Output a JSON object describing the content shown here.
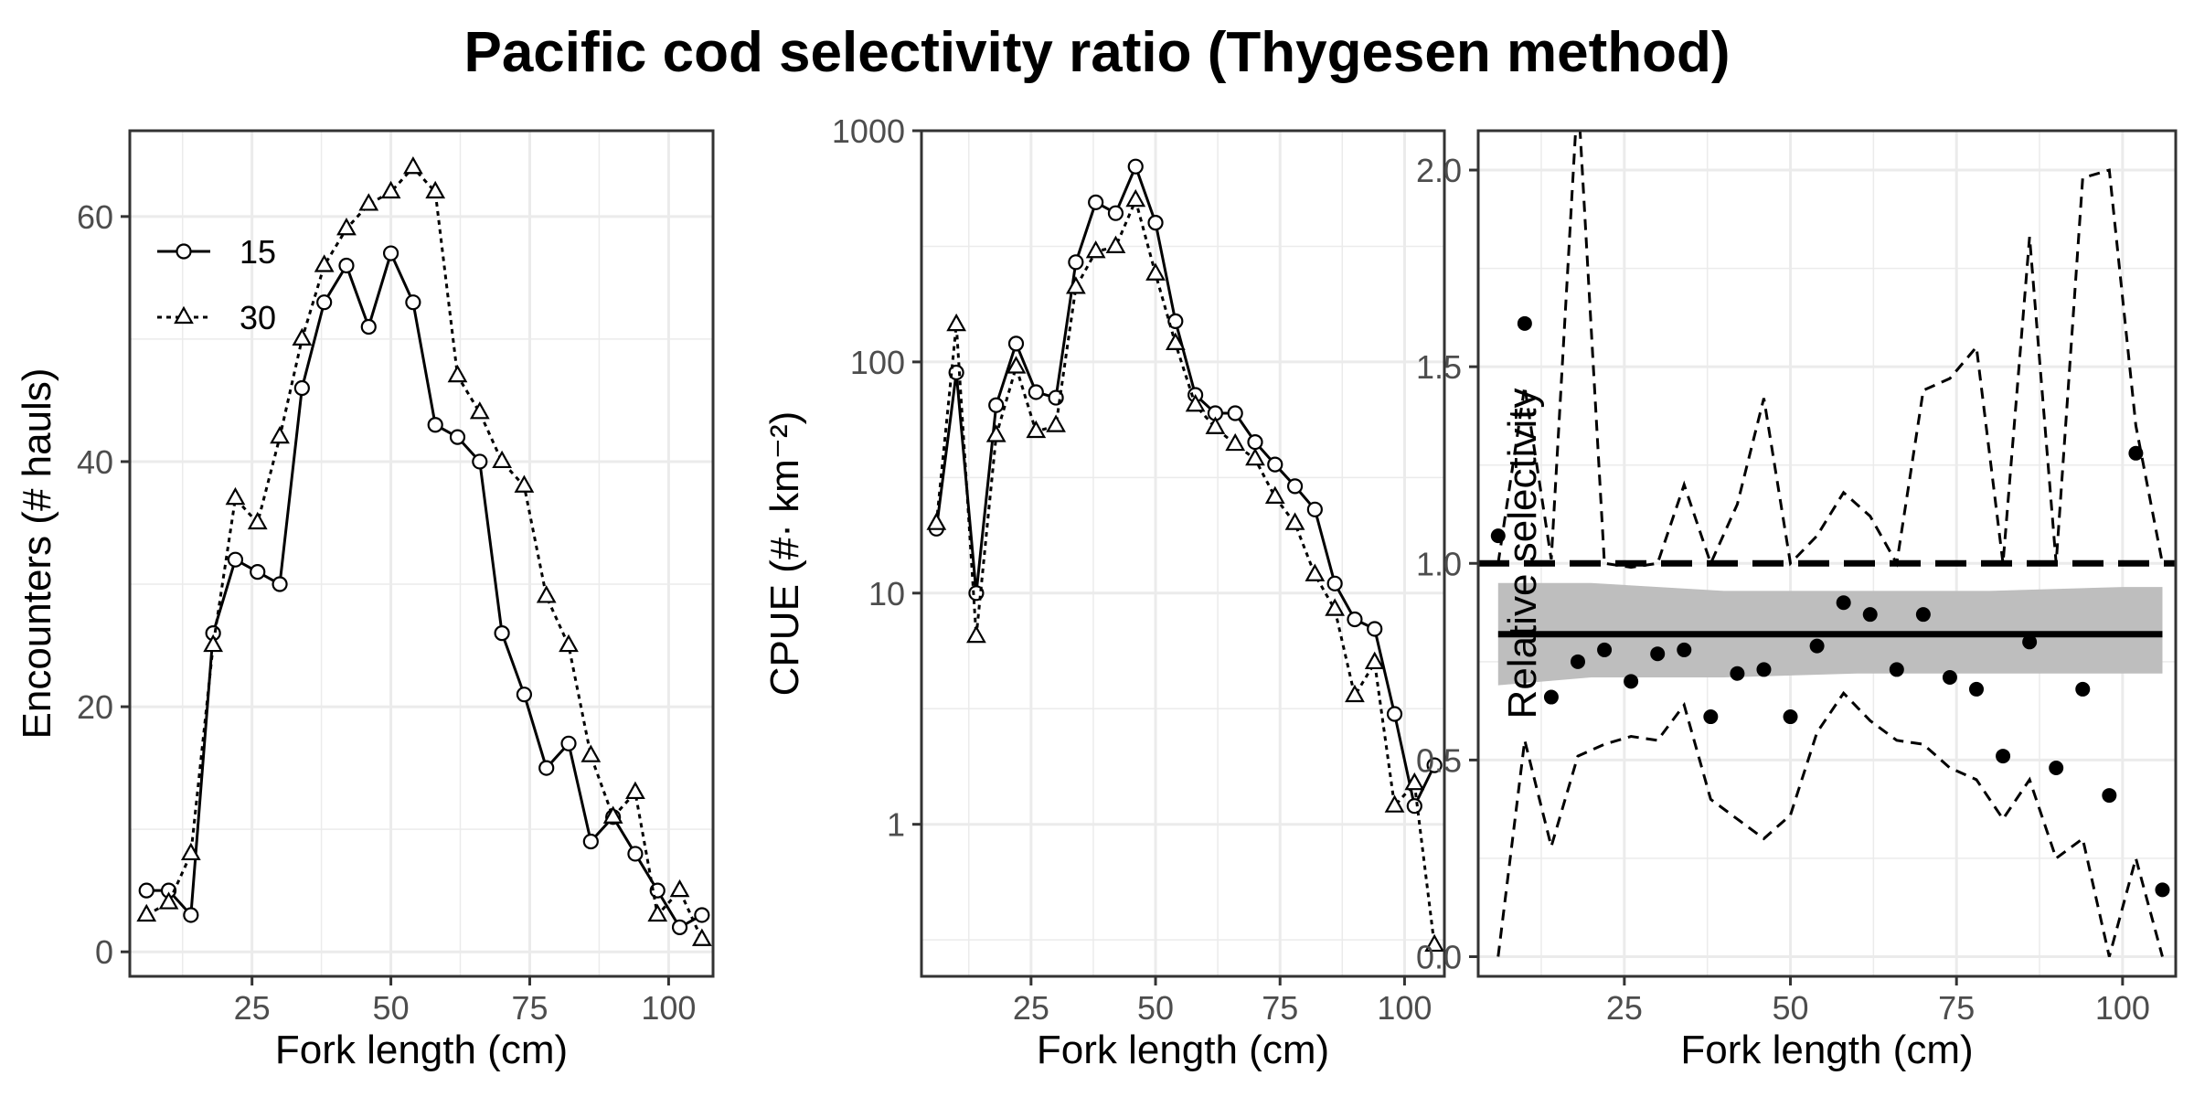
{
  "title": "Pacific cod selectivity ratio (Thygesen method)",
  "colors": {
    "line": "#000000",
    "grid": "#ebebeb",
    "band": "#bebebe",
    "panel_border": "#333333"
  },
  "chart_data": [
    {
      "type": "line",
      "xlabel": "Fork length (cm)",
      "ylabel": "Encounters (# hauls)",
      "xlim": [
        3,
        108
      ],
      "ylim": [
        -2,
        67
      ],
      "xticks": [
        25,
        50,
        75,
        100
      ],
      "yticks": [
        0,
        20,
        40,
        60
      ],
      "legend_position": "top-left",
      "grid": true,
      "x": [
        6,
        10,
        14,
        18,
        22,
        26,
        30,
        34,
        38,
        42,
        46,
        50,
        54,
        58,
        62,
        66,
        70,
        74,
        78,
        82,
        86,
        90,
        94,
        98,
        102,
        106
      ],
      "series": [
        {
          "name": "15",
          "marker": "circle",
          "line": "solid",
          "values": [
            5,
            5,
            3,
            26,
            32,
            31,
            30,
            46,
            53,
            56,
            51,
            57,
            53,
            43,
            42,
            40,
            26,
            21,
            15,
            17,
            9,
            11,
            8,
            5,
            2,
            3
          ]
        },
        {
          "name": "30",
          "marker": "triangle",
          "line": "dotted",
          "values": [
            3,
            4,
            8,
            25,
            37,
            35,
            42,
            50,
            56,
            59,
            61,
            62,
            64,
            62,
            47,
            44,
            40,
            38,
            29,
            25,
            16,
            11,
            13,
            3,
            5,
            1
          ]
        }
      ]
    },
    {
      "type": "line",
      "xlabel": "Fork length (cm)",
      "ylabel": "CPUE (#· km⁻²)",
      "yscale": "log",
      "xlim": [
        3,
        108
      ],
      "ylim": [
        0.22,
        1000
      ],
      "xticks": [
        25,
        50,
        75,
        100
      ],
      "yticks": [
        1,
        10,
        100,
        1000
      ],
      "grid": true,
      "x": [
        6,
        10,
        14,
        18,
        22,
        26,
        30,
        34,
        38,
        42,
        46,
        50,
        54,
        58,
        62,
        66,
        70,
        74,
        78,
        82,
        86,
        90,
        94,
        98,
        102,
        106
      ],
      "series": [
        {
          "name": "15",
          "marker": "circle",
          "line": "solid",
          "values": [
            19,
            90,
            10,
            65,
            120,
            74,
            70,
            270,
            490,
            440,
            700,
            400,
            150,
            72,
            60,
            60,
            45,
            36,
            29,
            23,
            11,
            7.7,
            7,
            3,
            1.2,
            1.8
          ]
        },
        {
          "name": "30",
          "marker": "triangle",
          "line": "dotted",
          "values": [
            20,
            145,
            6.5,
            48,
            95,
            50,
            53,
            210,
            300,
            315,
            500,
            240,
            120,
            65,
            52,
            44,
            38,
            26,
            20,
            12,
            8.5,
            3.6,
            5,
            1.2,
            1.5,
            0.3
          ]
        }
      ]
    },
    {
      "type": "scatter",
      "xlabel": "Fork length (cm)",
      "ylabel": "Relative selectivity",
      "xlim": [
        3,
        108
      ],
      "ylim": [
        -0.05,
        2.1
      ],
      "xticks": [
        25,
        50,
        75,
        100
      ],
      "yticks": [
        0.0,
        0.5,
        1.0,
        1.5,
        2.0
      ],
      "ytick_labels": [
        "0.0",
        "0.5",
        "1.0",
        "1.5",
        "2.0"
      ],
      "grid": true,
      "x": [
        6,
        10,
        14,
        18,
        22,
        26,
        30,
        34,
        38,
        42,
        46,
        50,
        54,
        58,
        62,
        66,
        70,
        74,
        78,
        82,
        86,
        90,
        94,
        98,
        102,
        106
      ],
      "points": [
        1.07,
        1.61,
        0.66,
        0.75,
        0.78,
        0.7,
        0.77,
        0.78,
        0.61,
        0.72,
        0.73,
        0.61,
        0.79,
        0.9,
        0.87,
        0.73,
        0.87,
        0.71,
        0.68,
        0.51,
        0.8,
        0.48,
        0.68,
        0.41,
        1.28,
        0.17
      ],
      "upper_ci": [
        1.0,
        1.45,
        1.01,
        2.2,
        1.0,
        0.99,
        1.0,
        1.2,
        1.0,
        1.15,
        1.42,
        1.0,
        1.07,
        1.18,
        1.12,
        1.0,
        1.44,
        1.47,
        1.55,
        1.0,
        1.83,
        1.0,
        1.98,
        2.0,
        1.35,
        1.0
      ],
      "lower_ci": [
        0.0,
        0.55,
        0.28,
        0.51,
        0.54,
        0.56,
        0.55,
        0.64,
        0.4,
        0.35,
        0.3,
        0.36,
        0.57,
        0.67,
        0.6,
        0.55,
        0.54,
        0.48,
        0.45,
        0.35,
        0.45,
        0.25,
        0.3,
        0.0,
        0.25,
        0.0
      ],
      "reference_line": 1.0,
      "mean_line": 0.82,
      "mean_ci_band": {
        "x": [
          6,
          20,
          40,
          60,
          80,
          100,
          106
        ],
        "upper": [
          0.95,
          0.95,
          0.93,
          0.93,
          0.93,
          0.94,
          0.94
        ],
        "lower": [
          0.69,
          0.71,
          0.71,
          0.72,
          0.72,
          0.72,
          0.72
        ]
      }
    }
  ]
}
